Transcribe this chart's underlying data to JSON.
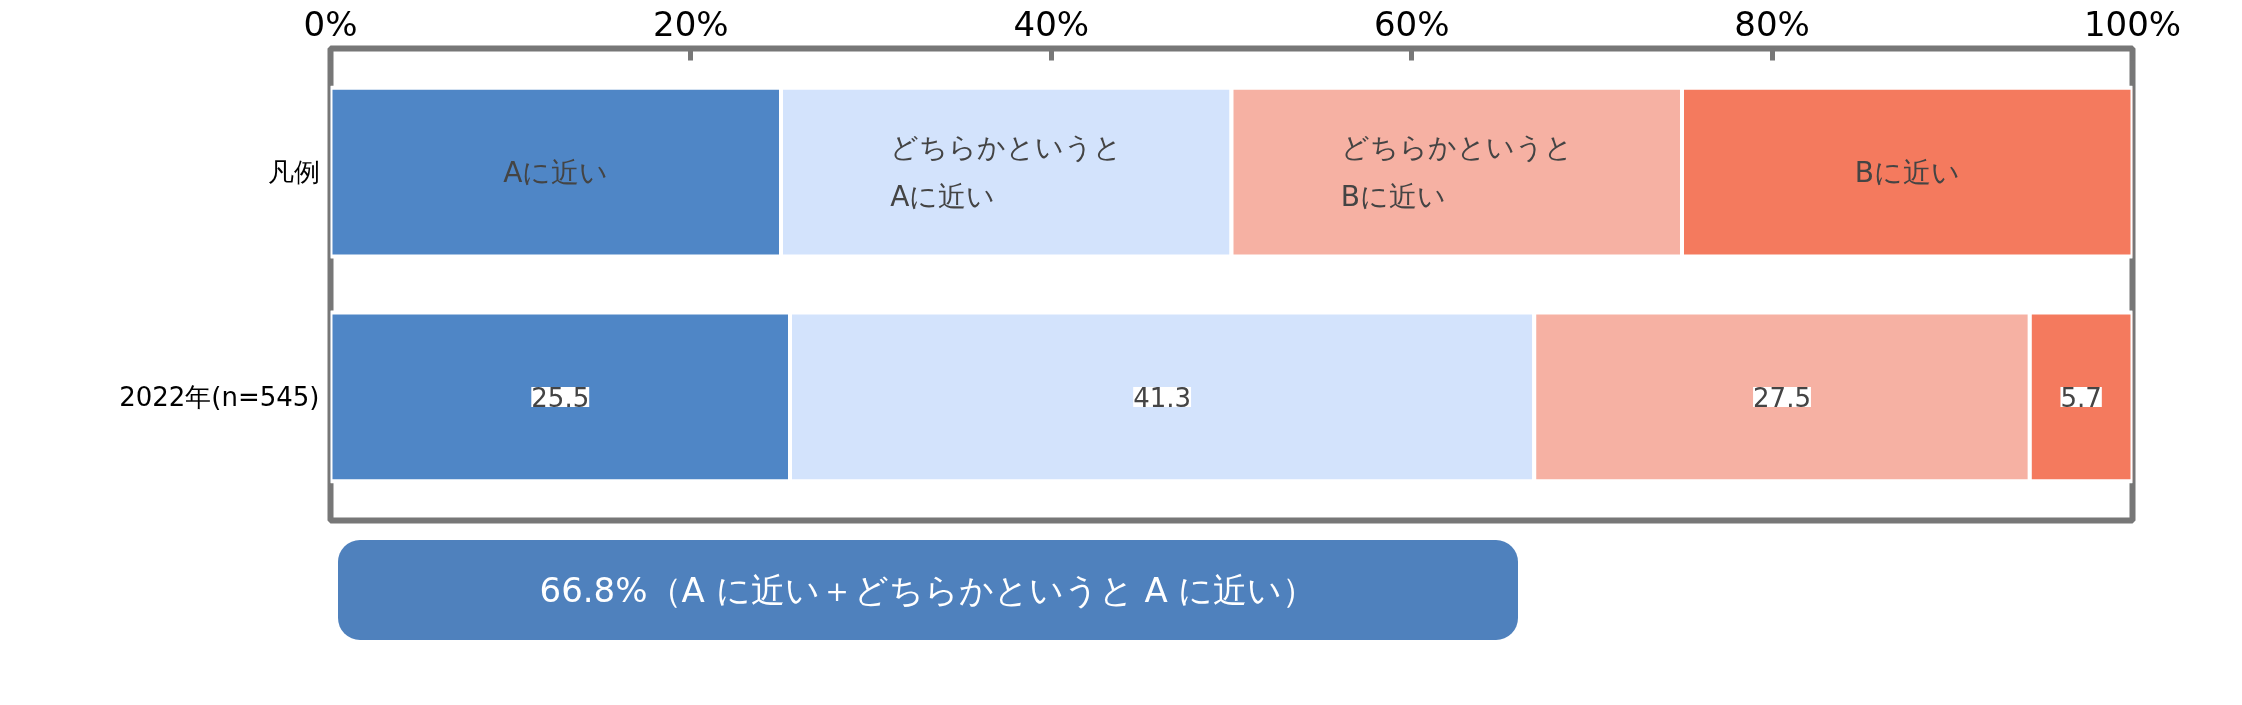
{
  "chart_data": {
    "type": "bar",
    "orientation": "horizontal",
    "stacked": true,
    "categories": [
      "凡例",
      "2022年(n=545)"
    ],
    "series": [
      {
        "name": "Aに近い",
        "color": "#4f86c6",
        "values": [
          25,
          25.5
        ],
        "value_labels": [
          null,
          "25.5"
        ]
      },
      {
        "name": "どちらかというと\nAに近い",
        "color": "#d3e3fc",
        "values": [
          25,
          41.3
        ],
        "value_labels": [
          null,
          "41.3"
        ]
      },
      {
        "name": "どちらかというと\nBに近い",
        "color": "#f6b1a3",
        "values": [
          25,
          27.5
        ],
        "value_labels": [
          null,
          "27.5"
        ]
      },
      {
        "name": "Bに近い",
        "color": "#f47a5e",
        "values": [
          25,
          5.7
        ],
        "value_labels": [
          null,
          "5.7"
        ]
      }
    ],
    "xlim": [
      0,
      100
    ],
    "xticks": [
      {
        "value": 0,
        "label": "0%"
      },
      {
        "value": 20,
        "label": "20%"
      },
      {
        "value": 40,
        "label": "40%"
      },
      {
        "value": 60,
        "label": "60%"
      },
      {
        "value": 80,
        "label": "80%"
      },
      {
        "value": 100,
        "label": "100%"
      }
    ],
    "annotations": [
      "66.8%（A に近い＋どちらかというと A に近い）"
    ]
  }
}
